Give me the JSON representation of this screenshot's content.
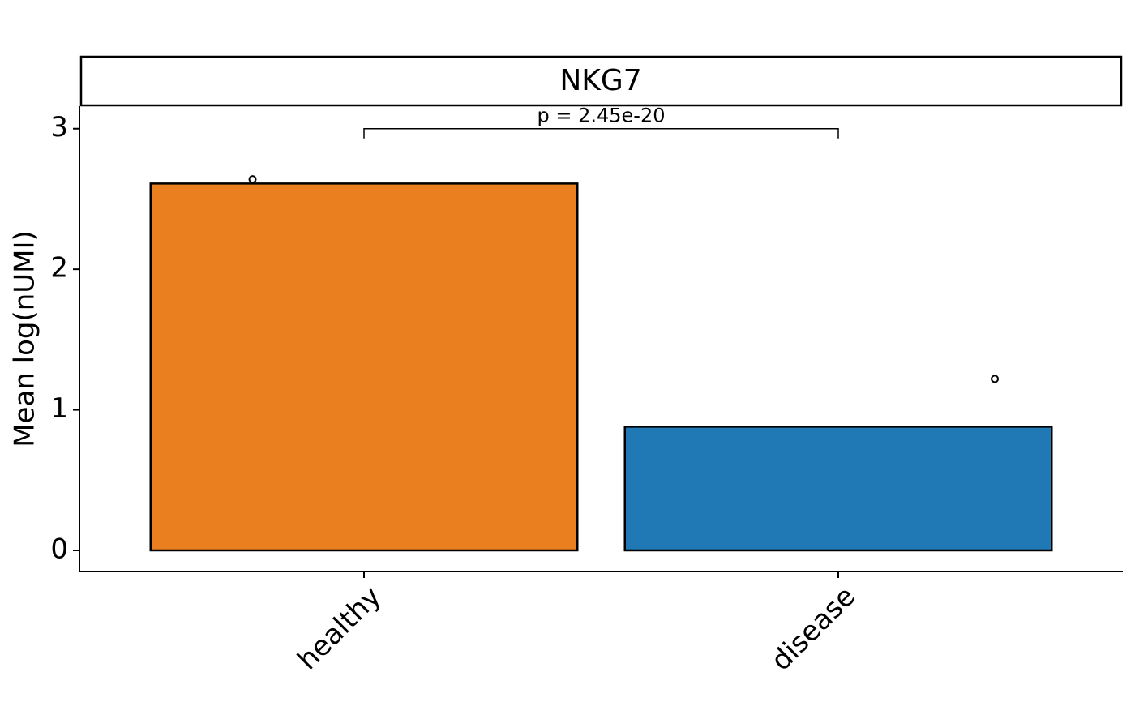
{
  "chart_data": {
    "type": "bar",
    "title": "NKG7",
    "y_label": "Mean log(nUMI)",
    "categories": [
      "healthy",
      "disease"
    ],
    "values": [
      2.61,
      0.88
    ],
    "colors": [
      "#e97f1f",
      "#2078b4"
    ],
    "points": [
      2.64,
      1.22
    ],
    "annotation": {
      "text": "p = 2.45e-20",
      "y": 3
    },
    "ylim": [
      -0.15,
      3.16
    ],
    "yticks": [
      0,
      1,
      2,
      3
    ],
    "grid": false
  }
}
